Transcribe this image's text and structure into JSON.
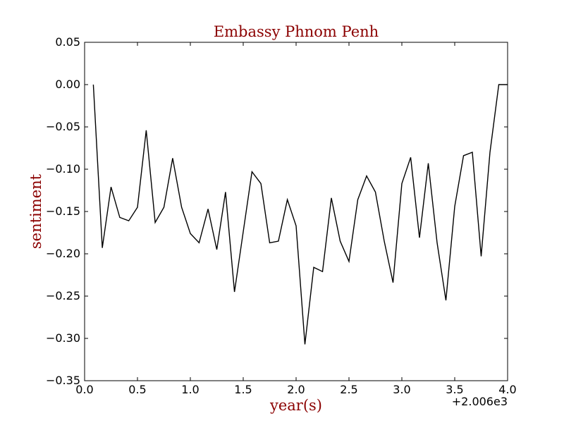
{
  "colors": {
    "label": "#8b0000",
    "line": "#000000",
    "axes": "#000000",
    "background": "#ffffff"
  },
  "chart_data": {
    "type": "line",
    "title": "Embassy Phnom Penh",
    "xlabel": "year(s)",
    "ylabel": "sentiment",
    "x_offset_label": "+2.006e3",
    "xlim": [
      0.0,
      4.0
    ],
    "ylim": [
      -0.35,
      0.05
    ],
    "grid": false,
    "x_ticks": [
      {
        "value": 0.0,
        "label": "0.0"
      },
      {
        "value": 0.5,
        "label": "0.5"
      },
      {
        "value": 1.0,
        "label": "1.0"
      },
      {
        "value": 1.5,
        "label": "1.5"
      },
      {
        "value": 2.0,
        "label": "2.0"
      },
      {
        "value": 2.5,
        "label": "2.5"
      },
      {
        "value": 3.0,
        "label": "3.0"
      },
      {
        "value": 3.5,
        "label": "3.5"
      },
      {
        "value": 4.0,
        "label": "4.0"
      }
    ],
    "y_ticks": [
      {
        "value": 0.05,
        "label": "0.05"
      },
      {
        "value": 0.0,
        "label": "0.00"
      },
      {
        "value": -0.05,
        "label": "−0.05"
      },
      {
        "value": -0.1,
        "label": "−0.10"
      },
      {
        "value": -0.15,
        "label": "−0.15"
      },
      {
        "value": -0.2,
        "label": "−0.20"
      },
      {
        "value": -0.25,
        "label": "−0.25"
      },
      {
        "value": -0.3,
        "label": "−0.30"
      },
      {
        "value": -0.35,
        "label": "−0.35"
      }
    ],
    "series": [
      {
        "x": [
          0.083,
          0.167,
          0.25,
          0.333,
          0.417,
          0.5,
          0.583,
          0.667,
          0.75,
          0.833,
          0.917,
          1.0,
          1.083,
          1.167,
          1.25,
          1.333,
          1.417,
          1.5,
          1.583,
          1.667,
          1.75,
          1.833,
          1.917,
          2.0,
          2.083,
          2.167,
          2.25,
          2.333,
          2.417,
          2.5,
          2.583,
          2.667,
          2.75,
          2.833,
          2.917,
          3.0,
          3.083,
          3.167,
          3.25,
          3.333,
          3.417,
          3.5,
          3.583,
          3.667,
          3.75,
          3.833,
          3.917,
          4.0
        ],
        "y": [
          0.0,
          -0.193,
          -0.121,
          -0.157,
          -0.161,
          -0.145,
          -0.054,
          -0.163,
          -0.145,
          -0.087,
          -0.145,
          -0.176,
          -0.187,
          -0.147,
          -0.195,
          -0.127,
          -0.245,
          -0.174,
          -0.103,
          -0.117,
          -0.187,
          -0.185,
          -0.136,
          -0.167,
          -0.307,
          -0.216,
          -0.221,
          -0.134,
          -0.185,
          -0.209,
          -0.136,
          -0.108,
          -0.127,
          -0.185,
          -0.234,
          -0.117,
          -0.086,
          -0.181,
          -0.093,
          -0.187,
          -0.255,
          -0.144,
          -0.084,
          -0.08,
          -0.203,
          -0.08,
          0.0,
          0.0
        ]
      }
    ]
  }
}
